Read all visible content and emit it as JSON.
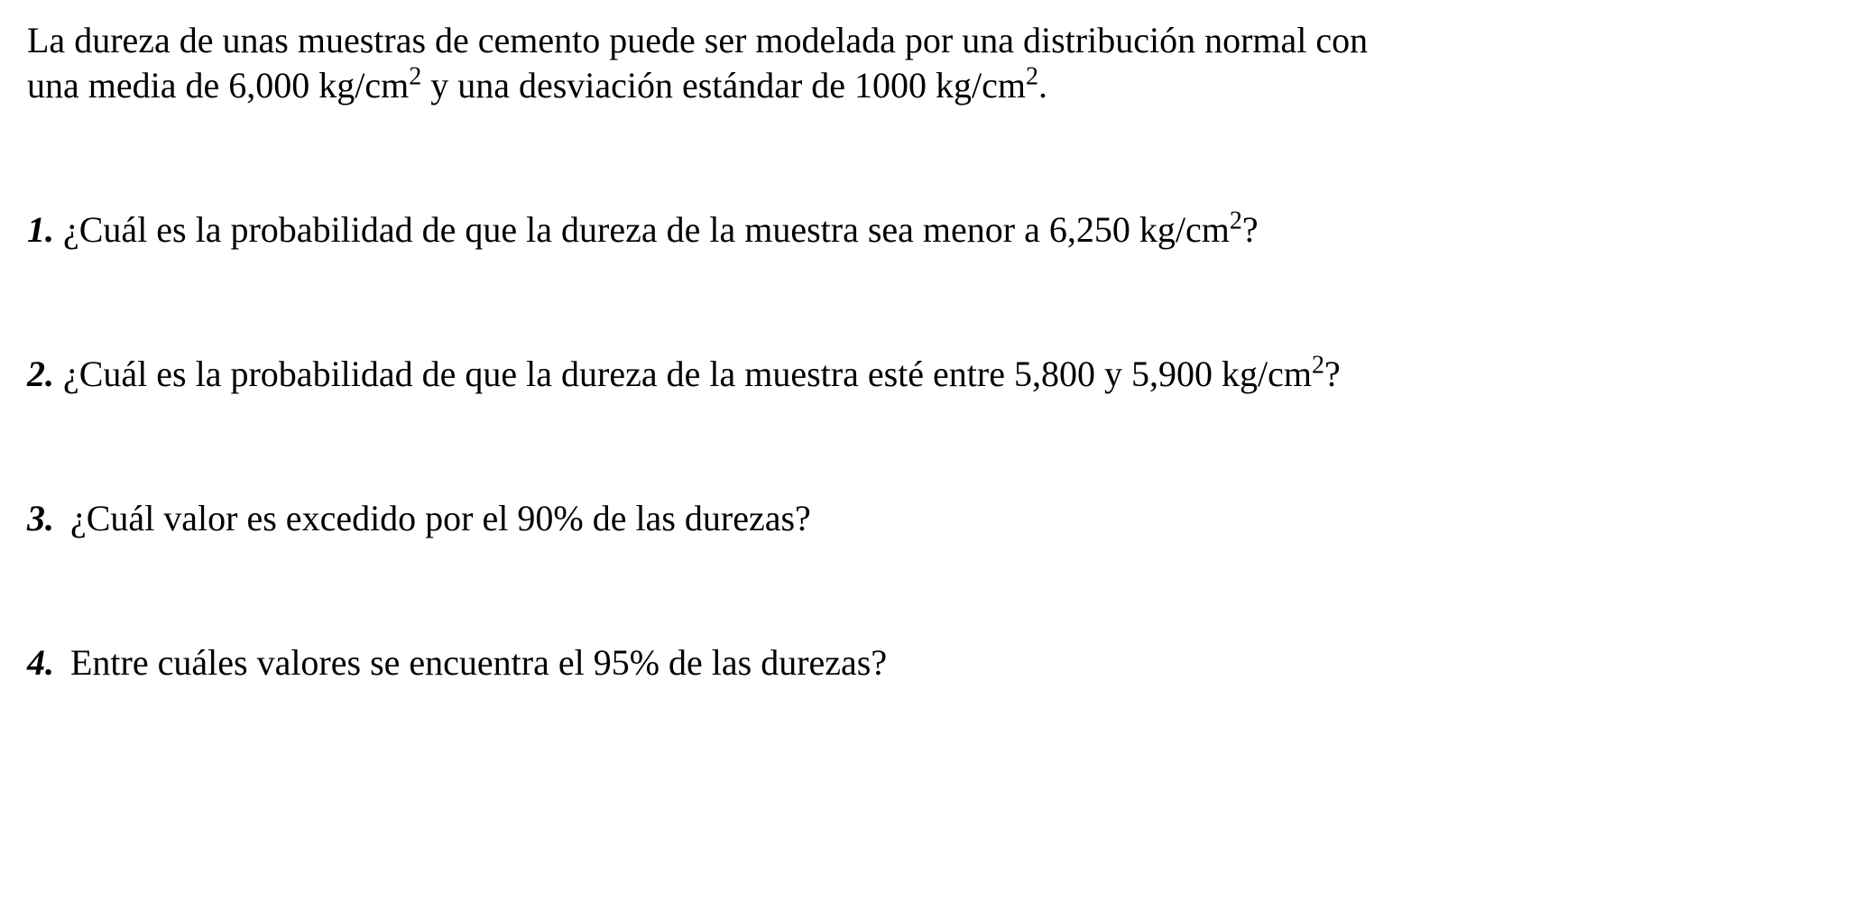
{
  "intro": {
    "line1_pre": "La dureza de unas muestras de cemento puede ser modelada por una distribución normal con",
    "line2_pre": "una media de 6,000 kg/cm",
    "line2_sup": "2",
    "line2_mid": "  y una desviación estándar de 1000 kg/cm",
    "line2_sup2": "2",
    "line2_end": "."
  },
  "q1": {
    "num": "1.",
    "text_pre": " ¿Cuál es la probabilidad de que la dureza de la muestra sea menor a 6,250 kg/cm",
    "sup": "2",
    "text_post": "?"
  },
  "q2": {
    "num": "2.",
    "text_pre": " ¿Cuál es la probabilidad de que la dureza de la muestra esté entre 5,800 y 5,900 kg/cm",
    "sup": "2",
    "text_post": "?"
  },
  "q3": {
    "num": "3.",
    "text": "¿Cuál valor es excedido por el 90% de las durezas?"
  },
  "q4": {
    "num": "4.",
    "text": "Entre cuáles valores se encuentra el 95% de las durezas?"
  }
}
